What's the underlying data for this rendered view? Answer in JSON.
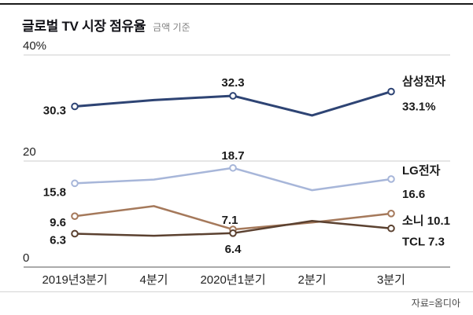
{
  "header": {
    "title": "글로벌 TV 시장 점유율",
    "subtitle": "금액 기준"
  },
  "source": "자료=옴디아",
  "chart_data": {
    "type": "line",
    "title": "글로벌 TV 시장 점유율",
    "subtitle": "금액 기준",
    "source": "자료=옴디아",
    "categories": [
      "2019년3분기",
      "4분기",
      "2020년1분기",
      "2분기",
      "3분기"
    ],
    "ylim": [
      0,
      45
    ],
    "grid": true,
    "legend_position": "right-of-line-ends",
    "y_axis": {
      "ticks": [
        {
          "value": 40,
          "label": "40%"
        },
        {
          "value": 20,
          "label": "20"
        },
        {
          "value": 0,
          "label": "0"
        }
      ]
    },
    "series": [
      {
        "name": "삼성전자",
        "color": "#2e4474",
        "line_width": 3,
        "values": [
          30.3,
          31.5,
          32.3,
          28.6,
          33.1
        ],
        "marker_indices": [
          0,
          2,
          4
        ],
        "labels": [
          {
            "index": 0,
            "text": "30.3",
            "anchor": "end",
            "dx": -11,
            "dy": 10
          },
          {
            "index": 2,
            "text": "32.3",
            "anchor": "middle",
            "dx": 0,
            "dy": -12
          }
        ],
        "end_label": [
          {
            "text": "삼성전자",
            "dy": -8
          },
          {
            "text": "33.1%",
            "dy": 24
          }
        ]
      },
      {
        "name": "LG전자",
        "color": "#a7b6d9",
        "line_width": 2.5,
        "values": [
          15.8,
          16.5,
          18.7,
          14.5,
          16.6
        ],
        "marker_indices": [
          0,
          2,
          4
        ],
        "labels": [
          {
            "index": 0,
            "text": "15.8",
            "anchor": "end",
            "dx": -11,
            "dy": 16
          },
          {
            "index": 2,
            "text": "18.7",
            "anchor": "middle",
            "dx": 0,
            "dy": -11
          }
        ],
        "end_label": [
          {
            "text": "LG전자",
            "dy": -6
          },
          {
            "text": "16.6",
            "dy": 24
          }
        ]
      },
      {
        "name": "소니",
        "color": "#a5795b",
        "line_width": 2.5,
        "values": [
          9.6,
          11.5,
          7.1,
          8.4,
          10.1
        ],
        "marker_indices": [
          0,
          2,
          4
        ],
        "labels": [
          {
            "index": 0,
            "text": "9.6",
            "anchor": "end",
            "dx": -11,
            "dy": 13
          },
          {
            "index": 2,
            "text": "7.1",
            "anchor": "middle",
            "dx": -4,
            "dy": -7
          }
        ],
        "end_label": [
          {
            "text": "소니 10.1",
            "dy": 14
          }
        ]
      },
      {
        "name": "TCL",
        "color": "#5b4130",
        "line_width": 2.5,
        "values": [
          6.3,
          5.9,
          6.4,
          8.7,
          7.3
        ],
        "marker_indices": [
          0,
          2,
          4
        ],
        "labels": [
          {
            "index": 0,
            "text": "6.3",
            "anchor": "end",
            "dx": -11,
            "dy": 13
          },
          {
            "index": 2,
            "text": "6.4",
            "anchor": "middle",
            "dx": 0,
            "dy": 25
          }
        ],
        "end_label": [
          {
            "text": "TCL 7.3",
            "dy": 22
          }
        ]
      }
    ]
  }
}
